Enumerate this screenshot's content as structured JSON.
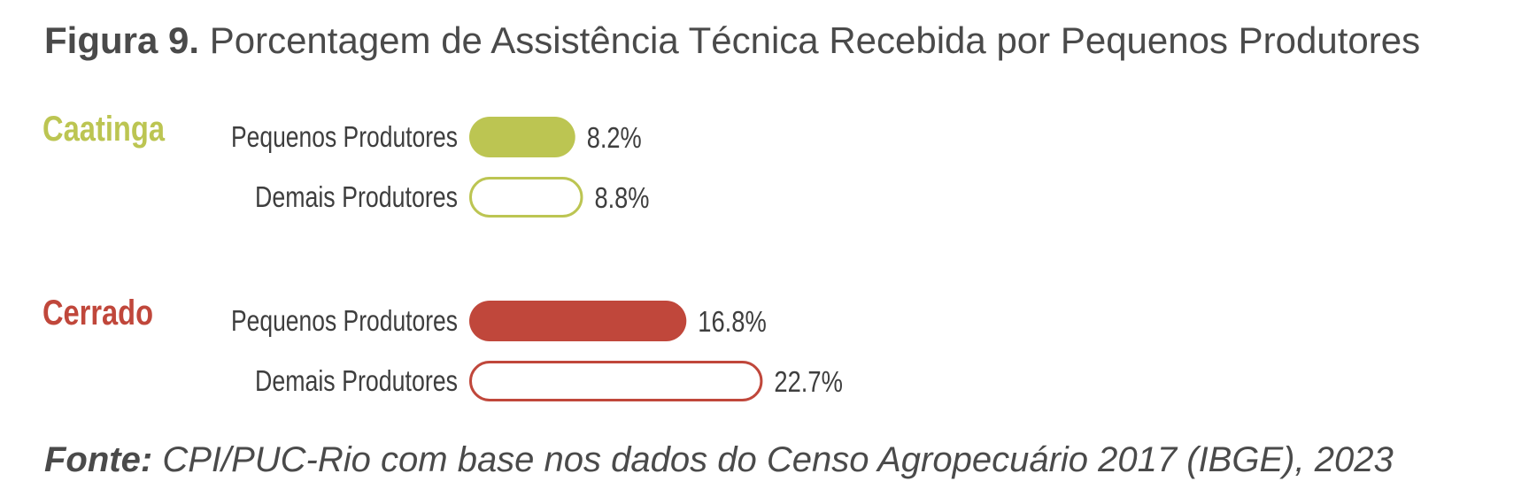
{
  "title": {
    "prefix": "Figura 9.",
    "text": "Porcentagem de Assistência Técnica Recebida por Pequenos Produtores"
  },
  "source": {
    "prefix": "Fonte:",
    "text": "CPI/PUC-Rio com base nos dados do Censo Agropecuário 2017 (IBGE), 2023"
  },
  "colors": {
    "caatinga": "#bcc552",
    "cerrado": "#c0473b",
    "text": "#3e3e3e"
  },
  "chart_data": {
    "type": "bar",
    "orientation": "horizontal",
    "value_format": "percent",
    "groups": [
      {
        "name": "Caatinga",
        "color": "#bcc552",
        "bars": [
          {
            "label": "Pequenos Produtores",
            "value": 8.2,
            "value_label": "8.2%",
            "filled": true
          },
          {
            "label": "Demais Produtores",
            "value": 8.8,
            "value_label": "8.8%",
            "filled": false
          }
        ]
      },
      {
        "name": "Cerrado",
        "color": "#c0473b",
        "bars": [
          {
            "label": "Pequenos Produtores",
            "value": 16.8,
            "value_label": "16.8%",
            "filled": true
          },
          {
            "label": "Demais Produtores",
            "value": 22.7,
            "value_label": "22.7%",
            "filled": false
          }
        ]
      }
    ]
  }
}
